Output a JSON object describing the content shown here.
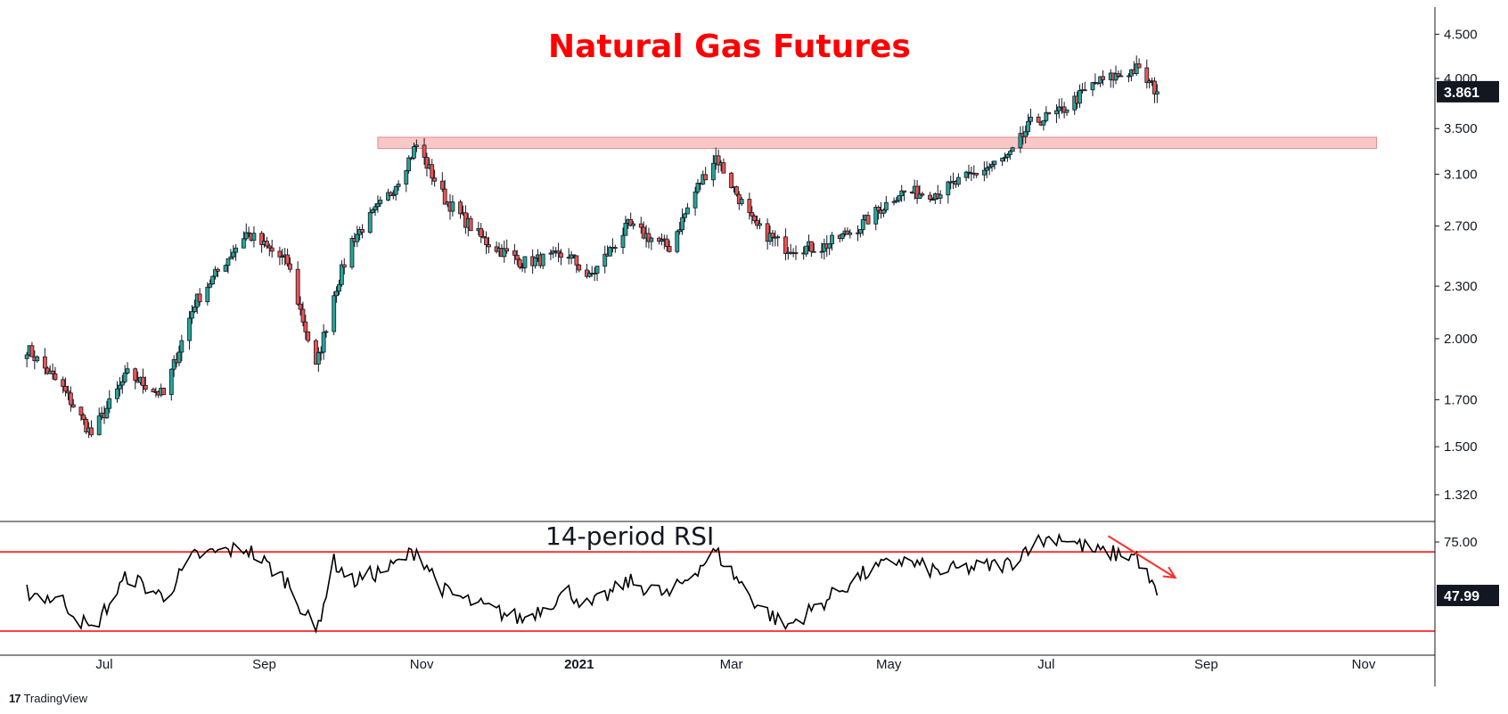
{
  "footer": {
    "brand": "TradingView",
    "logo_glyph": "17"
  },
  "colors": {
    "up": "#26a69a",
    "down": "#ef5350",
    "candle_line": "#131722",
    "title": "#ff0000",
    "zone_fill": "#f8c8c8",
    "zone_border": "#e88a8a",
    "rsi_band": "#ff0000",
    "arrow": "#ff2a2a",
    "price_label_bg": "#131722"
  },
  "chart_data": [
    {
      "type": "candlestick",
      "title": "Natural Gas Futures",
      "y_scale": "log",
      "y_ticks": [
        "4.500",
        "4.000",
        "3.500",
        "3.100",
        "2.700",
        "2.300",
        "2.000",
        "1.700",
        "1.500",
        "1.320"
      ],
      "y_tick_values": [
        4.5,
        4.0,
        3.5,
        3.1,
        2.7,
        2.3,
        2.0,
        1.7,
        1.5,
        1.32
      ],
      "x_labels": [
        {
          "label": "Jul",
          "date": "2020-07-01",
          "bold": false
        },
        {
          "label": "Sep",
          "date": "2020-09-01",
          "bold": false
        },
        {
          "label": "Nov",
          "date": "2020-11-01",
          "bold": false
        },
        {
          "label": "2021",
          "date": "2021-01-01",
          "bold": true
        },
        {
          "label": "Mar",
          "date": "2021-03-01",
          "bold": false
        },
        {
          "label": "May",
          "date": "2021-05-01",
          "bold": false
        },
        {
          "label": "Jul",
          "date": "2021-07-01",
          "bold": false
        },
        {
          "label": "Sep",
          "date": "2021-09-01",
          "bold": false
        },
        {
          "label": "Nov",
          "date": "2021-11-01",
          "bold": false
        }
      ],
      "last_price": "3.861",
      "resistance_zone": {
        "low": 3.32,
        "high": 3.42,
        "from": "2020-10-15",
        "to": "2021-11-06"
      },
      "key_closes": [
        {
          "date": "2020-06-01",
          "close": 1.95
        },
        {
          "date": "2020-06-15",
          "close": 1.75
        },
        {
          "date": "2020-06-26",
          "close": 1.55
        },
        {
          "date": "2020-07-10",
          "close": 1.82
        },
        {
          "date": "2020-07-24",
          "close": 1.72
        },
        {
          "date": "2020-08-05",
          "close": 2.2
        },
        {
          "date": "2020-08-25",
          "close": 2.65
        },
        {
          "date": "2020-09-10",
          "close": 2.45
        },
        {
          "date": "2020-09-21",
          "close": 1.85
        },
        {
          "date": "2020-09-28",
          "close": 2.25
        },
        {
          "date": "2020-10-05",
          "close": 2.6
        },
        {
          "date": "2020-10-20",
          "close": 2.95
        },
        {
          "date": "2020-10-30",
          "close": 3.35
        },
        {
          "date": "2020-11-10",
          "close": 2.9
        },
        {
          "date": "2020-11-25",
          "close": 2.6
        },
        {
          "date": "2020-12-10",
          "close": 2.45
        },
        {
          "date": "2020-12-28",
          "close": 2.5
        },
        {
          "date": "2021-01-05",
          "close": 2.35
        },
        {
          "date": "2021-01-20",
          "close": 2.7
        },
        {
          "date": "2021-02-05",
          "close": 2.55
        },
        {
          "date": "2021-02-16",
          "close": 3.0
        },
        {
          "date": "2021-02-23",
          "close": 3.25
        },
        {
          "date": "2021-03-10",
          "close": 2.7
        },
        {
          "date": "2021-03-22",
          "close": 2.55
        },
        {
          "date": "2021-04-05",
          "close": 2.55
        },
        {
          "date": "2021-04-20",
          "close": 2.7
        },
        {
          "date": "2021-05-05",
          "close": 2.95
        },
        {
          "date": "2021-05-20",
          "close": 2.95
        },
        {
          "date": "2021-06-03",
          "close": 3.1
        },
        {
          "date": "2021-06-17",
          "close": 3.25
        },
        {
          "date": "2021-06-25",
          "close": 3.55
        },
        {
          "date": "2021-07-06",
          "close": 3.65
        },
        {
          "date": "2021-07-20",
          "close": 3.95
        },
        {
          "date": "2021-08-05",
          "close": 4.1
        },
        {
          "date": "2021-08-13",
          "close": 3.861
        }
      ]
    },
    {
      "type": "line",
      "title": "14-period RSI",
      "y_ticks": [
        "75.00"
      ],
      "y_tick_values": [
        75.0
      ],
      "bands": [
        70,
        30
      ],
      "last_value": "47.99",
      "trend_arrow": {
        "from": {
          "date": "2021-07-25",
          "value": 78
        },
        "to": {
          "date": "2021-08-20",
          "value": 57
        }
      },
      "key_values": [
        {
          "date": "2020-06-01",
          "value": 50
        },
        {
          "date": "2020-06-15",
          "value": 45
        },
        {
          "date": "2020-06-26",
          "value": 30
        },
        {
          "date": "2020-07-10",
          "value": 58
        },
        {
          "date": "2020-07-24",
          "value": 47
        },
        {
          "date": "2020-08-05",
          "value": 68
        },
        {
          "date": "2020-08-25",
          "value": 72
        },
        {
          "date": "2020-09-10",
          "value": 55
        },
        {
          "date": "2020-09-21",
          "value": 29
        },
        {
          "date": "2020-09-28",
          "value": 65
        },
        {
          "date": "2020-10-05",
          "value": 55
        },
        {
          "date": "2020-10-20",
          "value": 62
        },
        {
          "date": "2020-10-30",
          "value": 71
        },
        {
          "date": "2020-11-10",
          "value": 50
        },
        {
          "date": "2020-11-25",
          "value": 42
        },
        {
          "date": "2020-12-10",
          "value": 36
        },
        {
          "date": "2020-12-28",
          "value": 50
        },
        {
          "date": "2021-01-05",
          "value": 42
        },
        {
          "date": "2021-01-20",
          "value": 55
        },
        {
          "date": "2021-02-05",
          "value": 48
        },
        {
          "date": "2021-02-16",
          "value": 62
        },
        {
          "date": "2021-02-23",
          "value": 70
        },
        {
          "date": "2021-03-10",
          "value": 45
        },
        {
          "date": "2021-03-22",
          "value": 32
        },
        {
          "date": "2021-04-05",
          "value": 44
        },
        {
          "date": "2021-04-20",
          "value": 58
        },
        {
          "date": "2021-05-05",
          "value": 66
        },
        {
          "date": "2021-05-20",
          "value": 60
        },
        {
          "date": "2021-06-03",
          "value": 62
        },
        {
          "date": "2021-06-17",
          "value": 64
        },
        {
          "date": "2021-06-25",
          "value": 74
        },
        {
          "date": "2021-07-06",
          "value": 78
        },
        {
          "date": "2021-07-20",
          "value": 70
        },
        {
          "date": "2021-08-05",
          "value": 68
        },
        {
          "date": "2021-08-13",
          "value": 48
        }
      ]
    }
  ]
}
